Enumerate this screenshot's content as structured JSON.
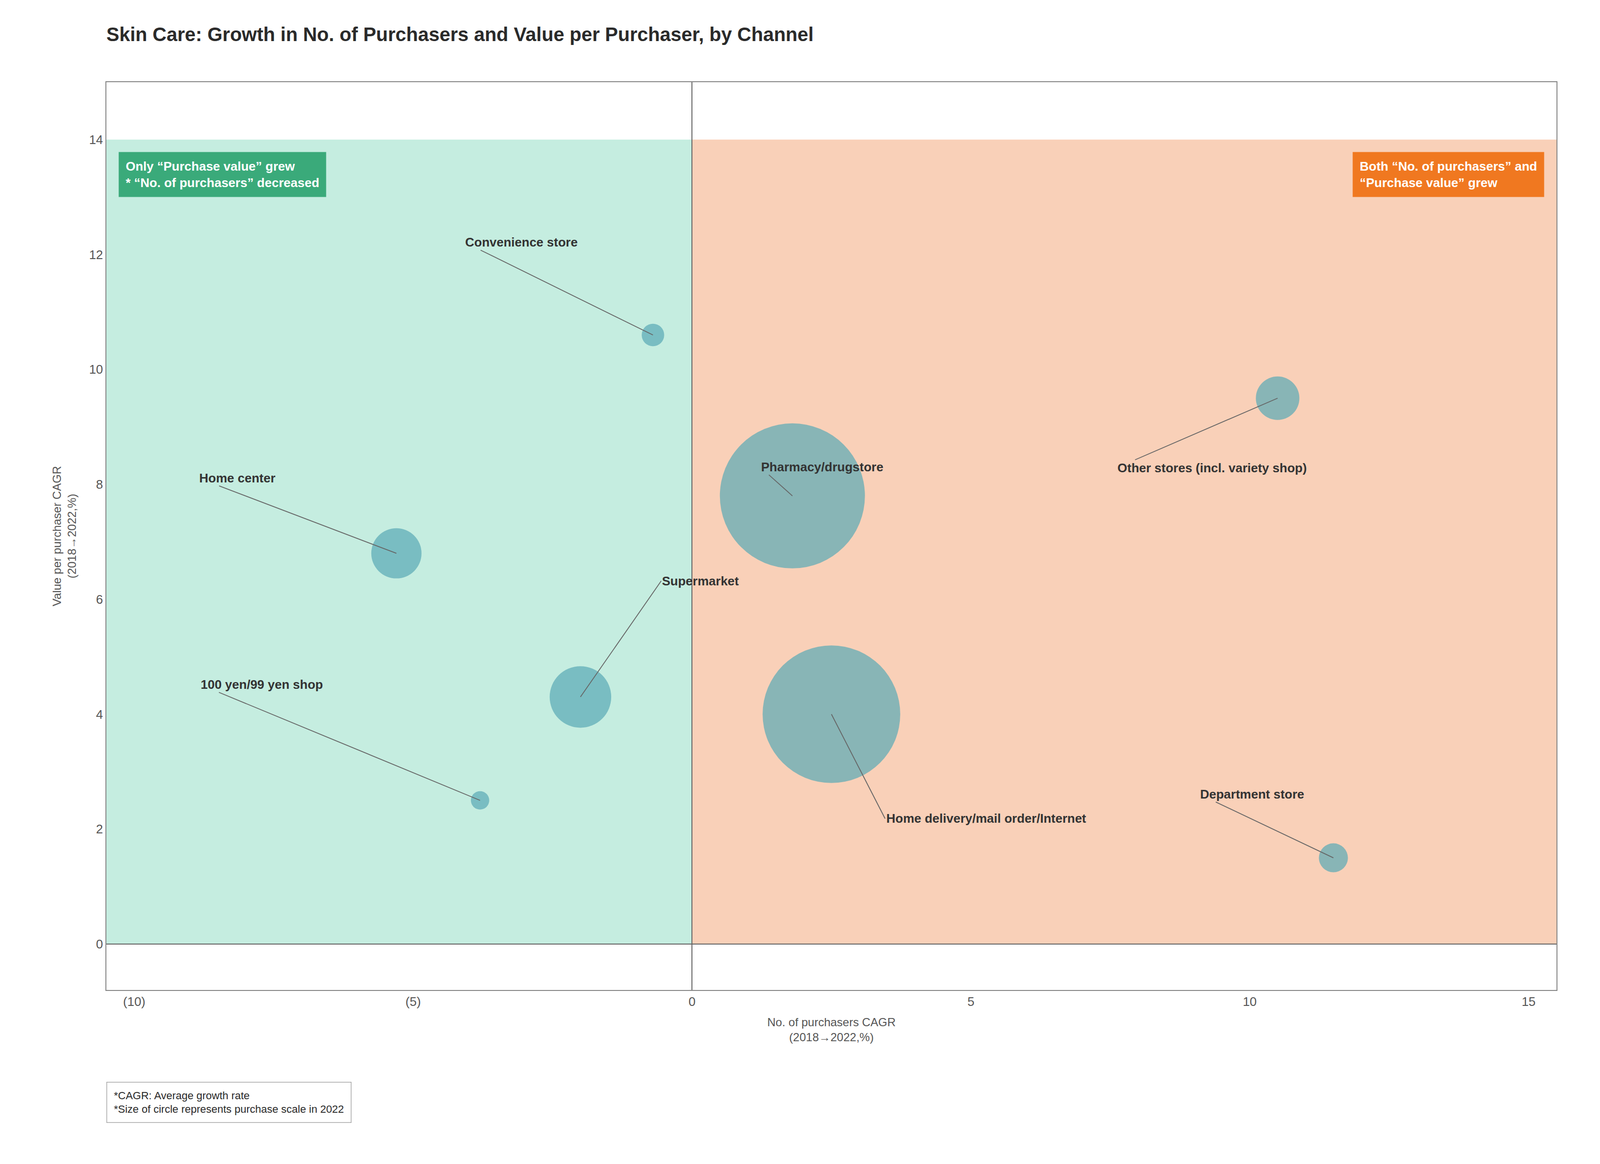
{
  "chart_data": {
    "type": "bubble",
    "title": "Skin Care: Growth in No. of Purchasers and Value per Purchaser, by Channel",
    "xlabel": "No. of purchasers CAGR\n(2018→2022,%)",
    "ylabel": "Value per purchaser CAGR\n(2018→2022,%)",
    "xlim": [
      -10.5,
      15.5
    ],
    "ylim": [
      -0.8,
      15.0
    ],
    "xticks": [
      {
        "value": -10,
        "label": "(10)"
      },
      {
        "value": -5,
        "label": "(5)"
      },
      0,
      5,
      10,
      15
    ],
    "yticks": [
      0,
      2,
      4,
      6,
      8,
      10,
      12,
      14
    ],
    "grid": false,
    "color": "#5baab5",
    "categories": [
      "Convenience store",
      "Home center",
      "100 yen/99 yen shop",
      "Supermarket",
      "Pharmacy/drugstore",
      "Home delivery/mail order/Internet",
      "Other stores (incl. variety shop)",
      "Department store"
    ],
    "x": [
      -0.7,
      -5.3,
      -3.8,
      -2.0,
      1.8,
      2.5,
      10.5,
      11.5
    ],
    "values": [
      10.6,
      6.8,
      2.5,
      4.3,
      7.8,
      4.0,
      9.5,
      1.5
    ],
    "sizes": [
      120,
      600,
      80,
      900,
      5000,
      4500,
      450,
      200
    ],
    "regions": [
      {
        "x": [
          -10.5,
          0
        ],
        "y": [
          0,
          14
        ],
        "color": "#c5ede0"
      },
      {
        "x": [
          0,
          15.5
        ],
        "y": [
          0,
          14
        ],
        "color": "#f9d0b8"
      }
    ],
    "annotations": [
      {
        "text": "Only “Purchase value” grew\n* “No. of purchasers” decreased",
        "color": "#3aaa7a"
      },
      {
        "text": "Both “No. of purchasers” and\n“Purchase value” grew",
        "color": "#f07820"
      }
    ],
    "footnote": "*CAGR: Average growth rate\n*Size of circle represents purchase scale in 2022"
  }
}
